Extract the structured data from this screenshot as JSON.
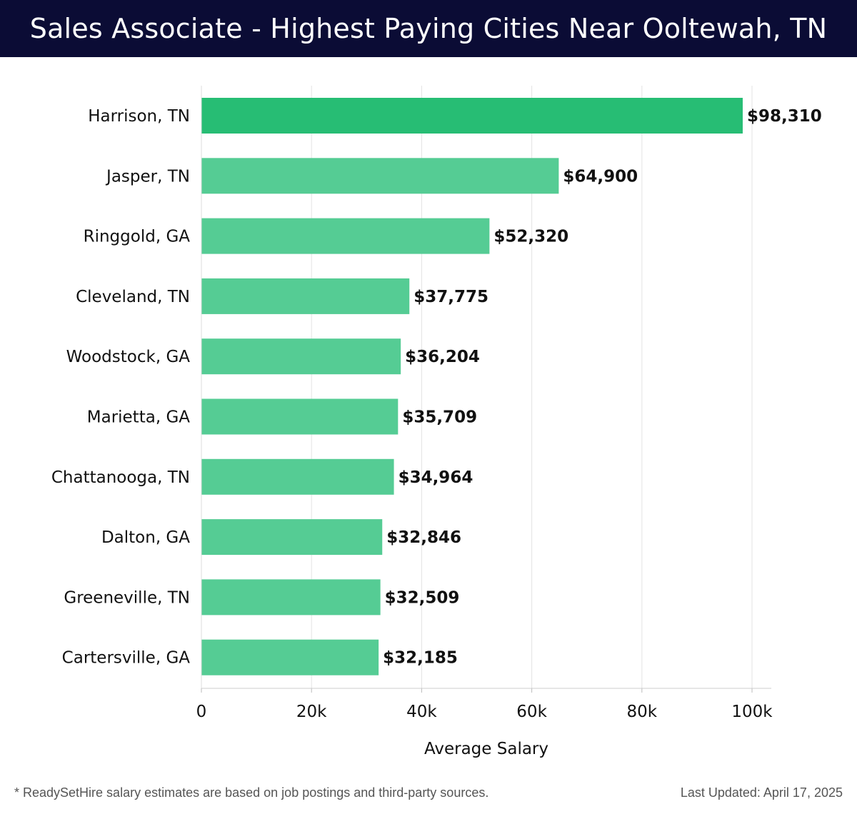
{
  "header": {
    "title": "Sales Associate - Highest Paying Cities Near Ooltewah, TN",
    "background": "#0b0c35"
  },
  "chart_data": {
    "type": "bar",
    "orientation": "horizontal",
    "categories": [
      "Harrison, TN",
      "Jasper, TN",
      "Ringgold, GA",
      "Cleveland, TN",
      "Woodstock, GA",
      "Marietta, GA",
      "Chattanooga, TN",
      "Dalton, GA",
      "Greeneville, TN",
      "Cartersville, GA"
    ],
    "values": [
      98310,
      64900,
      52320,
      37775,
      36204,
      35709,
      34964,
      32846,
      32509,
      32185
    ],
    "value_labels": [
      "$98,310",
      "$64,900",
      "$52,320",
      "$37,775",
      "$36,204",
      "$35,709",
      "$34,964",
      "$32,846",
      "$32,509",
      "$32,185"
    ],
    "title": "",
    "xlabel": "Average Salary",
    "ylabel": "",
    "xlim": [
      0,
      100000
    ],
    "xticks": [
      0,
      20000,
      40000,
      60000,
      80000,
      100000
    ],
    "xtick_labels": [
      "0",
      "20k",
      "40k",
      "60k",
      "80k",
      "100k"
    ],
    "grid": "vertical",
    "legend": "none",
    "colors": {
      "top": "#27bd74",
      "bar": "#55cc94"
    }
  },
  "footer": {
    "note": "* ReadySetHire salary estimates are based on job postings and third-party sources.",
    "updated": "Last Updated: April 17, 2025"
  }
}
